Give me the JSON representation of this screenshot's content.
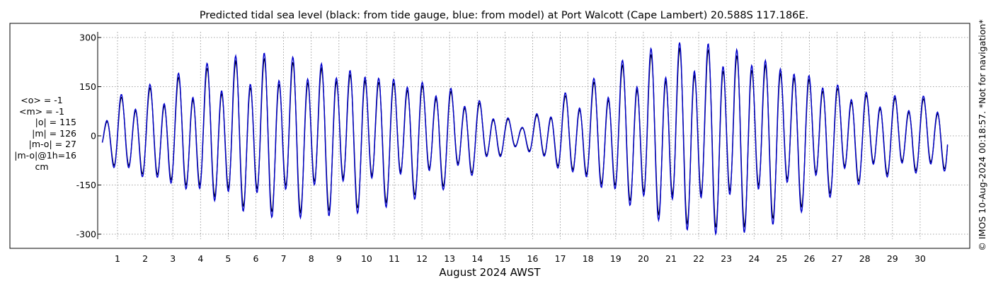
{
  "chart_data": {
    "type": "line",
    "title": "Predicted tidal sea level (black: from tide gauge, blue: from model) at Port Walcott (Cape Lambert) 20.588S 117.186E.",
    "xlabel": "August 2024 AWST",
    "ylabel": "",
    "x_ticks": [
      "1",
      "2",
      "3",
      "4",
      "5",
      "6",
      "7",
      "8",
      "9",
      "10",
      "11",
      "12",
      "13",
      "14",
      "15",
      "16",
      "17",
      "18",
      "19",
      "20",
      "21",
      "22",
      "23",
      "24",
      "25",
      "26",
      "27",
      "28",
      "29",
      "30"
    ],
    "xlim_days": [
      0.45,
      31.0
    ],
    "ylim": [
      -330,
      320
    ],
    "y_ticks": [
      -300,
      -150,
      0,
      150,
      300
    ],
    "grid": true,
    "series": [
      {
        "name": "black: from tide gauge",
        "color": "#000000",
        "scale": 0.93
      },
      {
        "name": "blue: from model",
        "color": "#0000cc",
        "scale": 1.0
      }
    ],
    "envelope_max_per_day": [
      [
        0.45,
        55
      ],
      [
        1.0,
        115
      ],
      [
        2.0,
        140
      ],
      [
        3.0,
        170
      ],
      [
        4.0,
        200
      ],
      [
        5.0,
        225
      ],
      [
        6.0,
        245
      ],
      [
        7.0,
        245
      ],
      [
        8.0,
        235
      ],
      [
        9.0,
        225
      ],
      [
        10.0,
        215
      ],
      [
        11.0,
        195
      ],
      [
        12.0,
        175
      ],
      [
        13.0,
        150
      ],
      [
        14.0,
        110
      ],
      [
        15.0,
        55
      ],
      [
        15.6,
        40
      ],
      [
        16.2,
        65
      ],
      [
        17.0,
        115
      ],
      [
        18.0,
        150
      ],
      [
        19.0,
        205
      ],
      [
        20.0,
        245
      ],
      [
        21.0,
        275
      ],
      [
        22.0,
        285
      ],
      [
        23.0,
        285
      ],
      [
        24.0,
        270
      ],
      [
        25.0,
        240
      ],
      [
        26.0,
        205
      ],
      [
        27.0,
        165
      ],
      [
        28.0,
        135
      ],
      [
        29.0,
        120
      ],
      [
        30.0,
        115
      ],
      [
        31.0,
        115
      ]
    ]
  },
  "stats": {
    "mean_obs": "<o> = -1",
    "mean_model": "<m> = -1",
    "abs_obs": "|o| = 115",
    "abs_model": "|m| = 126",
    "abs_diff": "|m-o| = 27",
    "abs_diff_1h": "|m-o|@1h=16",
    "unit": "cm"
  },
  "watermark": "© IMOS 10-Aug-2024 00:18:57. *Not for navigation*"
}
